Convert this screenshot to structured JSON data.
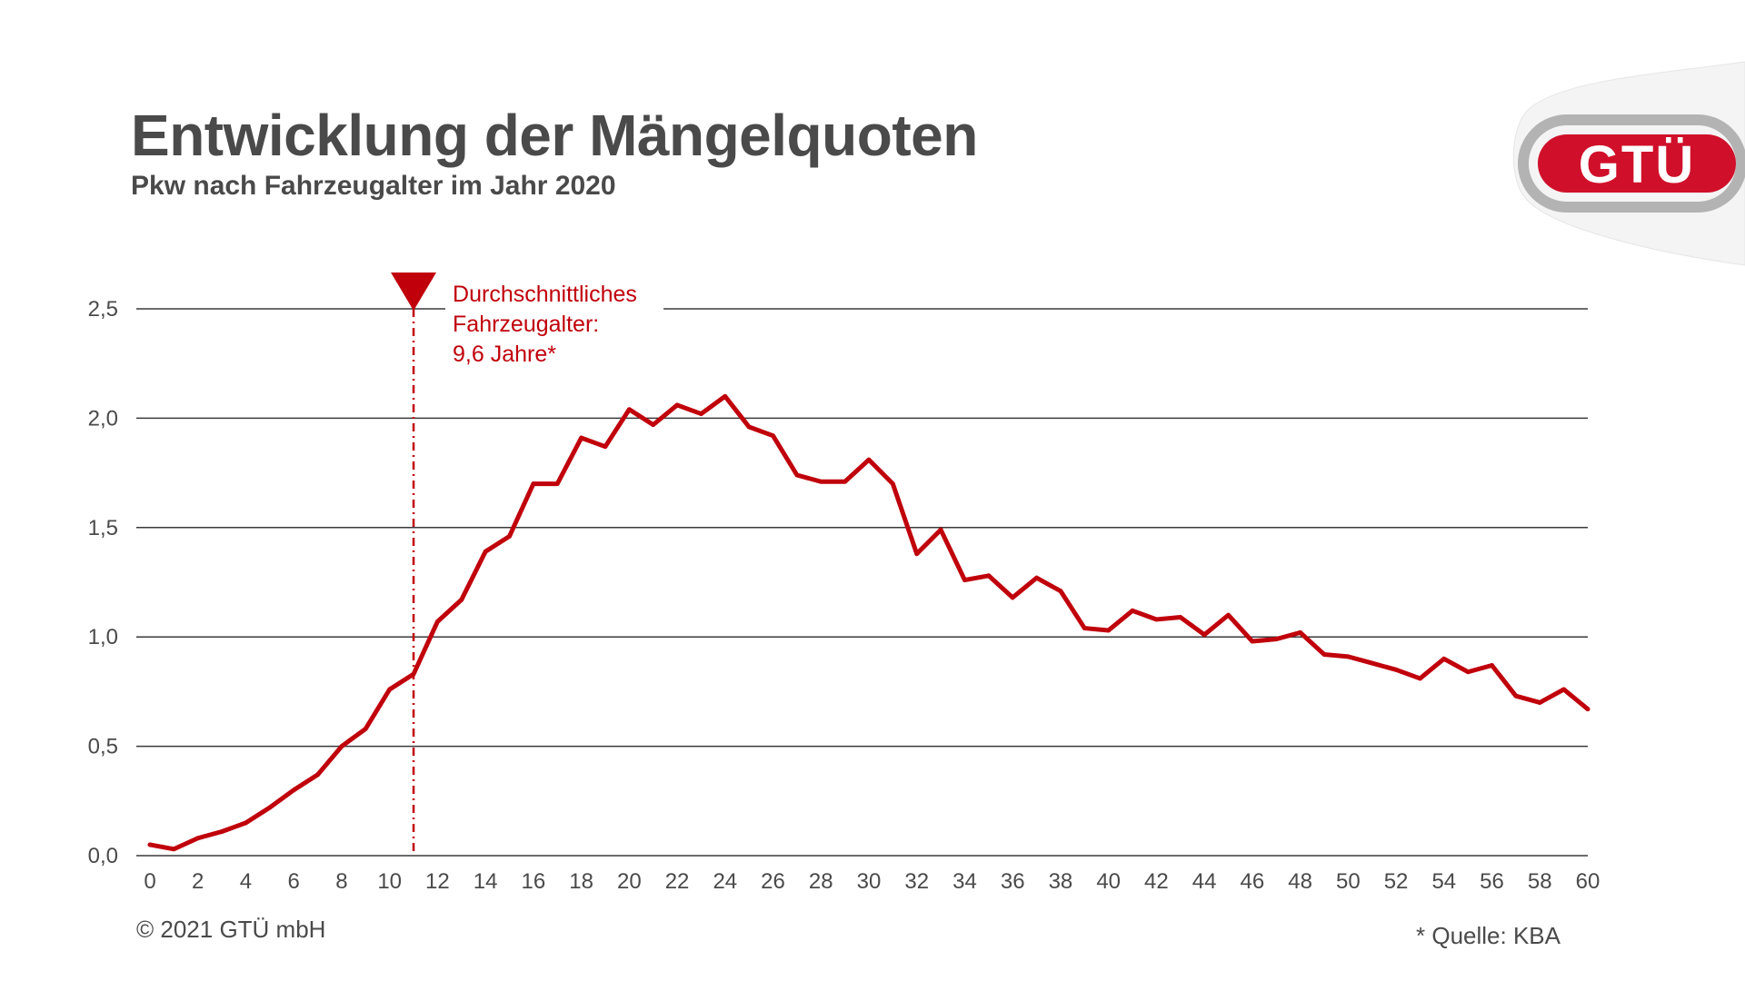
{
  "header": {
    "title": "Entwicklung der Mängelquoten",
    "subtitle": "Pkw nach Fahrzeugalter im Jahr 2020"
  },
  "logo": {
    "text": "GTÜ",
    "color": "#d0102a",
    "ring_color": "#b3b3b3"
  },
  "footer": {
    "copyright": "© 2021 GTÜ mbH",
    "source": "* Quelle: KBA"
  },
  "colors": {
    "line": "#c0000b",
    "grid": "#3a3a3a",
    "text": "#4a4a4a"
  },
  "chart_data": {
    "type": "line",
    "title": "Entwicklung der Mängelquoten",
    "subtitle": "Pkw nach Fahrzeugalter im Jahr 2020",
    "xlabel": "",
    "ylabel": "",
    "xlim": [
      0,
      60
    ],
    "ylim": [
      0,
      2.5
    ],
    "x_ticks": [
      0,
      2,
      4,
      6,
      8,
      10,
      12,
      14,
      16,
      18,
      20,
      22,
      24,
      26,
      28,
      30,
      32,
      34,
      36,
      38,
      40,
      42,
      44,
      46,
      48,
      50,
      52,
      54,
      56,
      58,
      60
    ],
    "y_ticks": [
      {
        "value": 0,
        "label": "0,0"
      },
      {
        "value": 0.5,
        "label": "0,5"
      },
      {
        "value": 1.0,
        "label": "1,0"
      },
      {
        "value": 1.5,
        "label": "1,5"
      },
      {
        "value": 2.0,
        "label": "2,0"
      },
      {
        "value": 2.5,
        "label": "2,5"
      }
    ],
    "grid": "horizontal",
    "series": [
      {
        "color": "#c0000b",
        "x": [
          0,
          1,
          2,
          3,
          4,
          5,
          6,
          7,
          8,
          9,
          10,
          11,
          12,
          13,
          14,
          15,
          16,
          17,
          18,
          19,
          20,
          21,
          22,
          23,
          24,
          25,
          26,
          27,
          28,
          29,
          30,
          31,
          32,
          33,
          34,
          35,
          36,
          37,
          38,
          39,
          40,
          41,
          42,
          43,
          44,
          45,
          46,
          47,
          48,
          49,
          50,
          51,
          52,
          53,
          54,
          55,
          56,
          57,
          58,
          59,
          60
        ],
        "values": [
          0.05,
          0.03,
          0.08,
          0.11,
          0.15,
          0.22,
          0.3,
          0.37,
          0.5,
          0.58,
          0.76,
          0.83,
          1.07,
          1.17,
          1.39,
          1.46,
          1.7,
          1.7,
          1.91,
          1.87,
          2.04,
          1.97,
          2.06,
          2.02,
          2.1,
          1.96,
          1.92,
          1.74,
          1.71,
          1.71,
          1.81,
          1.7,
          1.38,
          1.49,
          1.26,
          1.28,
          1.18,
          1.27,
          1.21,
          1.04,
          1.03,
          1.12,
          1.08,
          1.09,
          1.01,
          1.1,
          0.98,
          0.99,
          1.02,
          0.92,
          0.91,
          0.88,
          0.85,
          0.81,
          0.9,
          0.84,
          0.87,
          0.73,
          0.7,
          0.76,
          0.67
        ]
      }
    ],
    "annotations": [
      {
        "x": 11,
        "lines": [
          "Durchschnittliches",
          "Fahrzeugalter:",
          "9,6 Jahre*"
        ]
      }
    ]
  }
}
